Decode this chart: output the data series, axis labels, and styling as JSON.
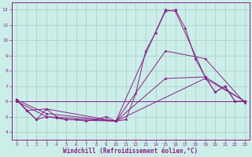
{
  "xlabel": "Windchill (Refroidissement éolien,°C)",
  "bg_color": "#cceee8",
  "line_color": "#882288",
  "grid_color": "#aacccc",
  "xlim": [
    -0.5,
    23.5
  ],
  "ylim": [
    3.5,
    12.5
  ],
  "xticks": [
    0,
    1,
    2,
    3,
    4,
    5,
    6,
    7,
    8,
    9,
    10,
    11,
    12,
    13,
    14,
    15,
    16,
    17,
    18,
    19,
    20,
    21,
    22,
    23
  ],
  "yticks": [
    4,
    5,
    6,
    7,
    8,
    9,
    10,
    11,
    12
  ],
  "lines": [
    {
      "x": [
        0,
        1,
        2,
        3,
        4,
        5,
        6,
        7,
        8,
        9,
        10,
        11,
        12,
        13,
        14,
        15,
        16,
        17,
        18,
        19,
        20,
        21,
        22,
        23
      ],
      "y": [
        6.1,
        5.4,
        4.8,
        5.5,
        5.0,
        4.8,
        4.8,
        4.7,
        4.8,
        5.0,
        4.7,
        4.8,
        6.5,
        9.3,
        10.5,
        11.9,
        12.0,
        10.8,
        8.8,
        7.6,
        6.6,
        7.0,
        6.0,
        6.0
      ]
    },
    {
      "x": [
        0,
        1,
        3,
        10,
        15,
        16,
        19,
        20,
        21,
        22,
        23
      ],
      "y": [
        6.1,
        5.4,
        5.5,
        4.7,
        12.0,
        11.9,
        7.6,
        6.6,
        7.0,
        6.0,
        6.0
      ]
    },
    {
      "x": [
        0,
        3,
        10,
        15,
        19,
        23
      ],
      "y": [
        6.1,
        5.2,
        4.7,
        9.3,
        8.8,
        5.9
      ]
    },
    {
      "x": [
        0,
        2,
        3,
        4,
        5,
        10,
        15,
        19,
        23
      ],
      "y": [
        6.1,
        4.8,
        5.0,
        4.9,
        4.8,
        4.7,
        7.5,
        7.6,
        6.0
      ]
    },
    {
      "x": [
        0,
        3,
        10,
        19,
        23
      ],
      "y": [
        6.0,
        5.0,
        4.7,
        7.5,
        6.0
      ]
    },
    {
      "x": [
        0,
        23
      ],
      "y": [
        6.0,
        6.0
      ]
    }
  ]
}
